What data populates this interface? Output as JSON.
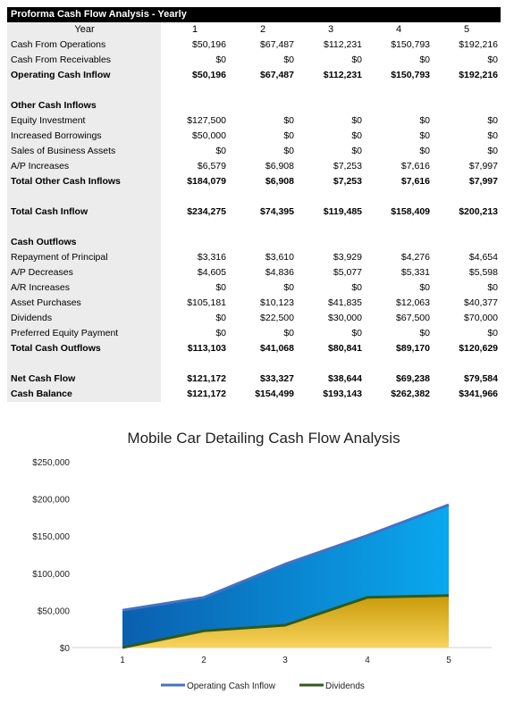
{
  "table": {
    "title": "Proforma Cash Flow Analysis - Yearly",
    "header_label": "Year",
    "years": [
      "1",
      "2",
      "3",
      "4",
      "5"
    ],
    "rows": [
      {
        "label": "Cash From Operations",
        "values": [
          "$50,196",
          "$67,487",
          "$112,231",
          "$150,793",
          "$192,216"
        ],
        "bold": false
      },
      {
        "label": "Cash From Receivables",
        "values": [
          "$0",
          "$0",
          "$0",
          "$0",
          "$0"
        ],
        "bold": false
      },
      {
        "label": "Operating Cash Inflow",
        "values": [
          "$50,196",
          "$67,487",
          "$112,231",
          "$150,793",
          "$192,216"
        ],
        "bold": true
      },
      {
        "label": "",
        "values": [
          "",
          "",
          "",
          "",
          ""
        ],
        "bold": false
      },
      {
        "label": "Other Cash Inflows",
        "values": [
          "",
          "",
          "",
          "",
          ""
        ],
        "bold": true
      },
      {
        "label": "Equity Investment",
        "values": [
          "$127,500",
          "$0",
          "$0",
          "$0",
          "$0"
        ],
        "bold": false
      },
      {
        "label": "Increased Borrowings",
        "values": [
          "$50,000",
          "$0",
          "$0",
          "$0",
          "$0"
        ],
        "bold": false
      },
      {
        "label": "Sales of Business Assets",
        "values": [
          "$0",
          "$0",
          "$0",
          "$0",
          "$0"
        ],
        "bold": false
      },
      {
        "label": "A/P Increases",
        "values": [
          "$6,579",
          "$6,908",
          "$7,253",
          "$7,616",
          "$7,997"
        ],
        "bold": false
      },
      {
        "label": "Total Other Cash Inflows",
        "values": [
          "$184,079",
          "$6,908",
          "$7,253",
          "$7,616",
          "$7,997"
        ],
        "bold": true
      },
      {
        "label": "",
        "values": [
          "",
          "",
          "",
          "",
          ""
        ],
        "bold": false
      },
      {
        "label": "Total Cash Inflow",
        "values": [
          "$234,275",
          "$74,395",
          "$119,485",
          "$158,409",
          "$200,213"
        ],
        "bold": true
      },
      {
        "label": "",
        "values": [
          "",
          "",
          "",
          "",
          ""
        ],
        "bold": false
      },
      {
        "label": "Cash Outflows",
        "values": [
          "",
          "",
          "",
          "",
          ""
        ],
        "bold": true
      },
      {
        "label": "Repayment of Principal",
        "values": [
          "$3,316",
          "$3,610",
          "$3,929",
          "$4,276",
          "$4,654"
        ],
        "bold": false
      },
      {
        "label": "A/P Decreases",
        "values": [
          "$4,605",
          "$4,836",
          "$5,077",
          "$5,331",
          "$5,598"
        ],
        "bold": false
      },
      {
        "label": "A/R Increases",
        "values": [
          "$0",
          "$0",
          "$0",
          "$0",
          "$0"
        ],
        "bold": false
      },
      {
        "label": "Asset Purchases",
        "values": [
          "$105,181",
          "$10,123",
          "$41,835",
          "$12,063",
          "$40,377"
        ],
        "bold": false
      },
      {
        "label": "Dividends",
        "values": [
          "$0",
          "$22,500",
          "$30,000",
          "$67,500",
          "$70,000"
        ],
        "bold": false
      },
      {
        "label": "Preferred Equity Payment",
        "values": [
          "$0",
          "$0",
          "$0",
          "$0",
          "$0"
        ],
        "bold": false
      },
      {
        "label": "Total Cash Outflows",
        "values": [
          "$113,103",
          "$41,068",
          "$80,841",
          "$89,170",
          "$120,629"
        ],
        "bold": true
      },
      {
        "label": "",
        "values": [
          "",
          "",
          "",
          "",
          ""
        ],
        "bold": false
      },
      {
        "label": "Net Cash Flow",
        "values": [
          "$121,172",
          "$33,327",
          "$38,644",
          "$69,238",
          "$79,584"
        ],
        "bold": true
      },
      {
        "label": "Cash Balance",
        "values": [
          "$121,172",
          "$154,499",
          "$193,143",
          "$262,382",
          "$341,966"
        ],
        "bold": true
      }
    ]
  },
  "chart_data": {
    "type": "area",
    "title": "Mobile Car Detailing Cash Flow Analysis",
    "x": [
      "1",
      "2",
      "3",
      "4",
      "5"
    ],
    "series": [
      {
        "name": "Operating Cash Inflow",
        "values": [
          50196,
          67487,
          112231,
          150793,
          192216
        ],
        "color": "#0a78c8",
        "line_color": "#4472c4"
      },
      {
        "name": "Dividends",
        "values": [
          0,
          22500,
          30000,
          67500,
          70000
        ],
        "color": "#d9a70a",
        "line_color": "#2e5a1c"
      }
    ],
    "ylim": [
      0,
      250000
    ],
    "yticks": [
      "$0",
      "$50,000",
      "$100,000",
      "$150,000",
      "$200,000",
      "$250,000"
    ],
    "legend": "bottom",
    "grid": false
  }
}
